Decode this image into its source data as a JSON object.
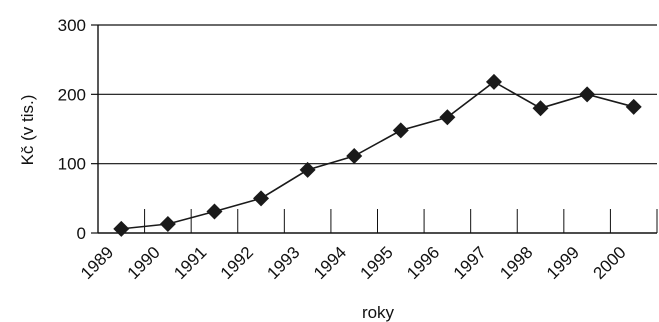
{
  "chart_data": {
    "type": "line",
    "title": "",
    "xlabel": "roky",
    "ylabel": "Kč (v tis.)",
    "ylim": [
      0,
      300
    ],
    "yticks": [
      0,
      100,
      200,
      300
    ],
    "grid": "horizontal",
    "categories": [
      "1989",
      "1990",
      "1991",
      "1992",
      "1993",
      "1994",
      "1995",
      "1996",
      "1997",
      "1998",
      "1999",
      "2000"
    ],
    "series": [
      {
        "marker": "diamond",
        "color": "#1a1a1a",
        "values": [
          6,
          13,
          31,
          50,
          91,
          111,
          148,
          167,
          218,
          180,
          200,
          182
        ]
      }
    ]
  }
}
